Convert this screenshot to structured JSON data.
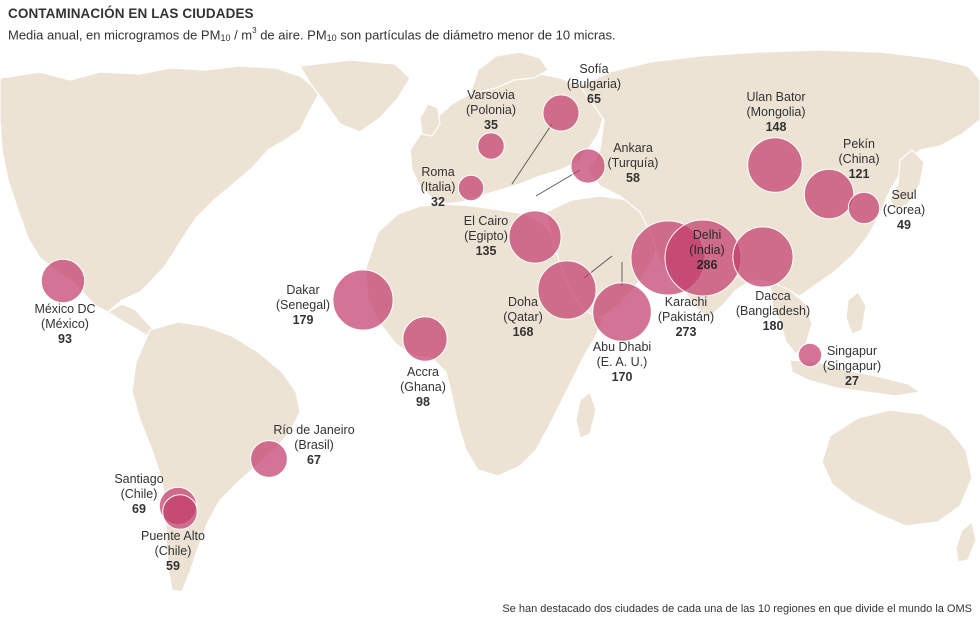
{
  "title": "CONTAMINACIÓN EN LAS CIUDADES",
  "subtitle": {
    "part1": "Media anual, en microgramos de PM",
    "sub1": "10",
    "part2": " / m",
    "sup": "3",
    "part3": " de aire. PM",
    "sub2": "10",
    "part4": " son partículas de diámetro menor de 10 micras."
  },
  "note": "Se han destacado dos ciudades de cada una de las 10 regiones en que divide el mundo la OMS",
  "colors": {
    "bubble": "#c23e6e",
    "land": "#ede3d4"
  },
  "cities": [
    {
      "id": "mexico",
      "name": "México DC",
      "country": "(México)",
      "value": "93"
    },
    {
      "id": "santiago",
      "name": "Santiago",
      "country": "(Chile)",
      "value": "69"
    },
    {
      "id": "puente-alto",
      "name": "Puente Alto",
      "country": "(Chile)",
      "value": "59"
    },
    {
      "id": "rio",
      "name": "Río de Janeiro",
      "country": "(Brasil)",
      "value": "67"
    },
    {
      "id": "dakar",
      "name": "Dakar",
      "country": "(Senegal)",
      "value": "179"
    },
    {
      "id": "accra",
      "name": "Accra",
      "country": "(Ghana)",
      "value": "98"
    },
    {
      "id": "roma",
      "name": "Roma",
      "country": "(Italia)",
      "value": "32"
    },
    {
      "id": "varsovia",
      "name": "Varsovia",
      "country": "(Polonia)",
      "value": "35"
    },
    {
      "id": "sofia",
      "name": "Sofía",
      "country": "(Bulgaria)",
      "value": "65"
    },
    {
      "id": "ankara",
      "name": "Ankara",
      "country": "(Turquía)",
      "value": "58"
    },
    {
      "id": "cairo",
      "name": "El Cairo",
      "country": "(Egipto)",
      "value": "135"
    },
    {
      "id": "doha",
      "name": "Doha",
      "country": "(Qatar)",
      "value": "168"
    },
    {
      "id": "abudhabi",
      "name": "Abu Dhabi",
      "country": "(E. A. U.)",
      "value": "170"
    },
    {
      "id": "karachi",
      "name": "Karachi",
      "country": "(Pakistán)",
      "value": "273"
    },
    {
      "id": "delhi",
      "name": "Delhi",
      "country": "(India)",
      "value": "286"
    },
    {
      "id": "dacca",
      "name": "Dacca",
      "country": "(Bangladesh)",
      "value": "180"
    },
    {
      "id": "ulanbator",
      "name": "Ulan Bator",
      "country": "(Mongolia)",
      "value": "148"
    },
    {
      "id": "pekin",
      "name": "Pekín",
      "country": "(China)",
      "value": "121"
    },
    {
      "id": "seul",
      "name": "Seul",
      "country": "(Corea)",
      "value": "49"
    },
    {
      "id": "singapur",
      "name": "Singapur",
      "country": "(Singapur)",
      "value": "27"
    }
  ]
}
